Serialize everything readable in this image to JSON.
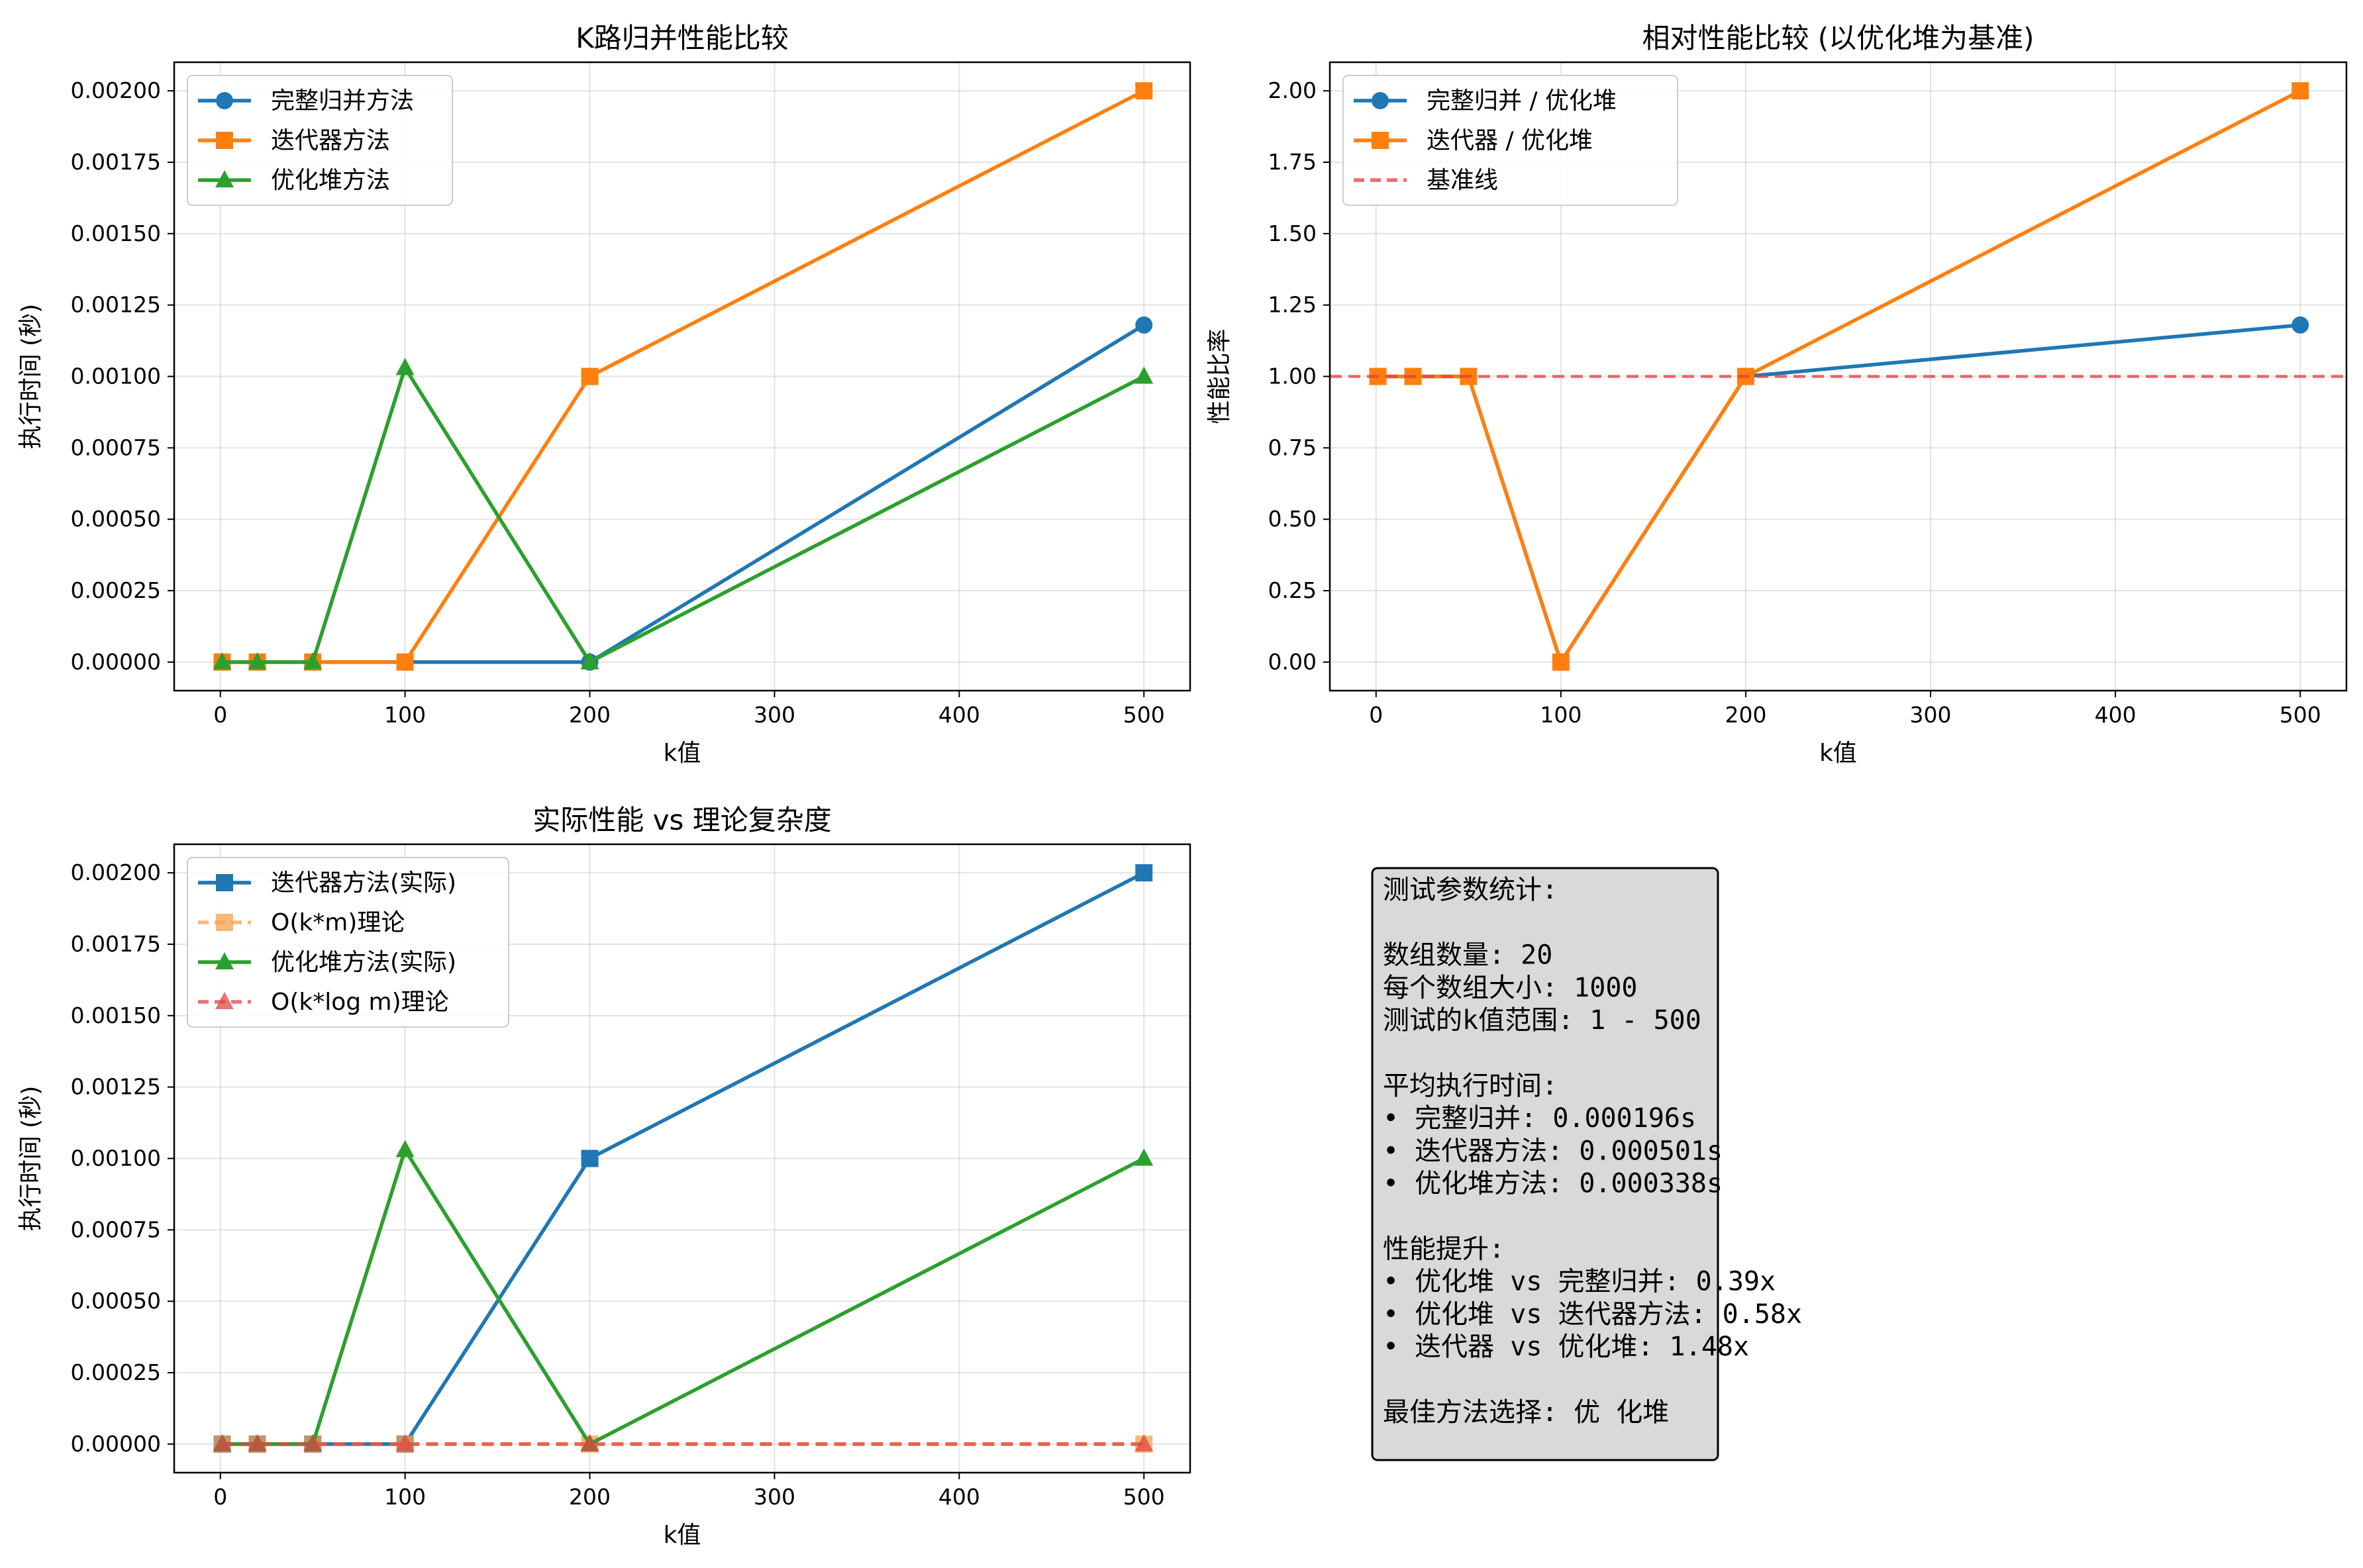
{
  "chart_data": [
    {
      "type": "line",
      "title": "K路归并性能比较",
      "xlabel": "k值",
      "ylabel": "执行时间 (秒)",
      "x": [
        1,
        20,
        50,
        100,
        200,
        500
      ],
      "xlim": [
        -25,
        525
      ],
      "ylim": [
        -0.0001,
        0.0021
      ],
      "xticks": [
        0,
        100,
        200,
        300,
        400,
        500
      ],
      "yticks": [
        0,
        0.00025,
        0.0005,
        0.00075,
        0.001,
        0.00125,
        0.0015,
        0.00175,
        0.002
      ],
      "ytick_labels": [
        "0.00000",
        "0.00025",
        "0.00050",
        "0.00075",
        "0.00100",
        "0.00125",
        "0.00150",
        "0.00175",
        "0.00200"
      ],
      "grid": true,
      "legend": "top-left",
      "series": [
        {
          "name": "完整归并方法",
          "color": "#1f77b4",
          "marker": "circle",
          "dash": "solid",
          "values": [
            0,
            0,
            0,
            0,
            0,
            0.00118
          ]
        },
        {
          "name": "迭代器方法",
          "color": "#ff7f0e",
          "marker": "square",
          "dash": "solid",
          "values": [
            0,
            0,
            0,
            0,
            0.001,
            0.002
          ]
        },
        {
          "name": "优化堆方法",
          "color": "#2ca02c",
          "marker": "triangle",
          "dash": "solid",
          "values": [
            0,
            0,
            0,
            0.00103,
            0,
            0.001
          ]
        }
      ]
    },
    {
      "type": "line",
      "title": "相对性能比较 (以优化堆为基准)",
      "xlabel": "k值",
      "ylabel": "性能比率",
      "x": [
        1,
        20,
        50,
        100,
        200,
        500
      ],
      "xlim": [
        -25,
        525
      ],
      "ylim": [
        -0.1,
        2.1
      ],
      "xticks": [
        0,
        100,
        200,
        300,
        400,
        500
      ],
      "yticks": [
        0,
        0.25,
        0.5,
        0.75,
        1,
        1.25,
        1.5,
        1.75,
        2
      ],
      "ytick_labels": [
        "0.00",
        "0.25",
        "0.50",
        "0.75",
        "1.00",
        "1.25",
        "1.50",
        "1.75",
        "2.00"
      ],
      "grid": true,
      "legend": "top-left",
      "series": [
        {
          "name": "完整归并 / 优化堆",
          "color": "#1f77b4",
          "marker": "circle",
          "dash": "solid",
          "values": [
            1,
            1,
            1,
            0,
            1,
            1.18
          ]
        },
        {
          "name": "迭代器 / 优化堆",
          "color": "#ff7f0e",
          "marker": "square",
          "dash": "solid",
          "values": [
            1,
            1,
            1,
            0,
            1,
            2.0
          ]
        },
        {
          "name": "基准线",
          "color": "#e83a3a",
          "marker": "none",
          "dash": "dashed",
          "hline": 1
        }
      ]
    },
    {
      "type": "line",
      "title": "实际性能 vs 理论复杂度",
      "xlabel": "k值",
      "ylabel": "执行时间 (秒)",
      "x": [
        1,
        20,
        50,
        100,
        200,
        500
      ],
      "xlim": [
        -25,
        525
      ],
      "ylim": [
        -0.0001,
        0.0021
      ],
      "xticks": [
        0,
        100,
        200,
        300,
        400,
        500
      ],
      "yticks": [
        0,
        0.00025,
        0.0005,
        0.00075,
        0.001,
        0.00125,
        0.0015,
        0.00175,
        0.002
      ],
      "ytick_labels": [
        "0.00000",
        "0.00025",
        "0.00050",
        "0.00075",
        "0.00100",
        "0.00125",
        "0.00150",
        "0.00175",
        "0.00200"
      ],
      "grid": true,
      "legend": "top-left",
      "series": [
        {
          "name": "迭代器方法(实际)",
          "color": "#1f77b4",
          "marker": "square",
          "dash": "solid",
          "values": [
            0,
            0,
            0,
            0,
            0.001,
            0.002
          ]
        },
        {
          "name": "O(k*m)理论",
          "color": "#f5a04c",
          "marker": "square",
          "dash": "dashed",
          "values": [
            0,
            0,
            0,
            0,
            0,
            0
          ]
        },
        {
          "name": "优化堆方法(实际)",
          "color": "#2ca02c",
          "marker": "triangle",
          "dash": "solid",
          "values": [
            0,
            0,
            0,
            0.00103,
            0,
            0.001
          ]
        },
        {
          "name": "O(k*log m)理论",
          "color": "#e04545",
          "marker": "triangle",
          "dash": "dashed",
          "values": [
            0,
            0,
            0,
            0,
            0,
            0
          ]
        }
      ]
    }
  ],
  "stats_box": {
    "lines": [
      "测试参数统计:",
      "",
      "数组数量: 20",
      "每个数组大小: 1000",
      "测试的k值范围: 1 - 500",
      "",
      "平均执行时间:",
      "• 完整归并: 0.000196s",
      "• 迭代器方法: 0.000501s",
      "• 优化堆方法: 0.000338s",
      "",
      "性能提升:",
      "• 优化堆 vs 完整归并: 0.39x",
      "• 优化堆 vs 迭代器方法: 0.58x",
      "• 迭代器 vs 优化堆: 1.48x",
      "",
      "最佳方法选择: 优 化堆"
    ]
  }
}
